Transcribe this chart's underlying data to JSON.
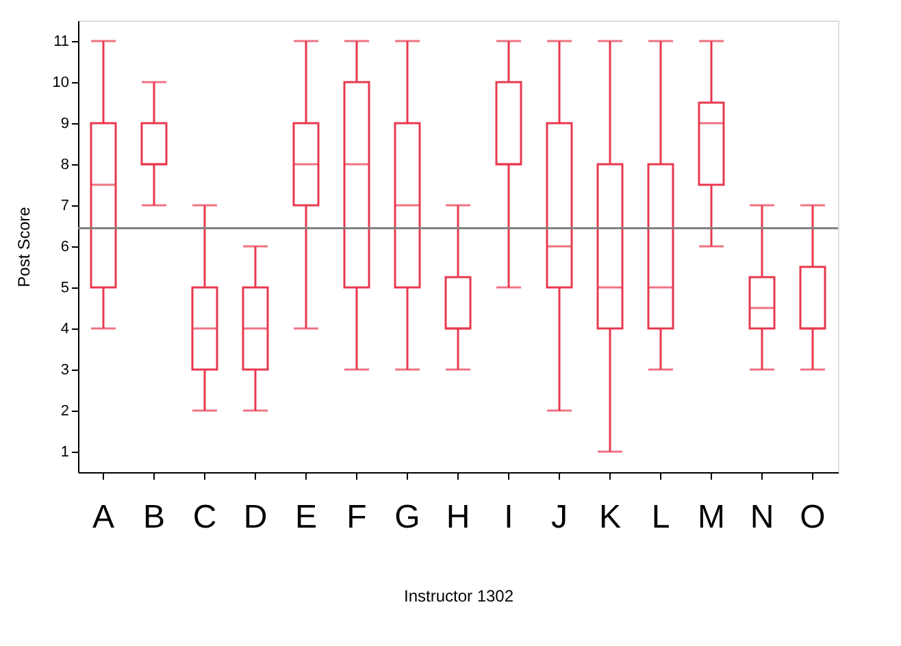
{
  "chart_data": {
    "type": "box",
    "xlabel": "Instructor 1302",
    "ylabel": "Post Score",
    "categories": [
      "A",
      "B",
      "C",
      "D",
      "E",
      "F",
      "G",
      "H",
      "I",
      "J",
      "K",
      "L",
      "M",
      "N",
      "O"
    ],
    "color": "#e8384f",
    "boxes": [
      {
        "low": 4,
        "q1": 5,
        "median": 7.5,
        "q3": 9,
        "high": 11
      },
      {
        "low": 7,
        "q1": 8,
        "median": 8,
        "q3": 9,
        "high": 10
      },
      {
        "low": 2,
        "q1": 3,
        "median": 4,
        "q3": 5,
        "high": 7
      },
      {
        "low": 2,
        "q1": 3,
        "median": 4,
        "q3": 5,
        "high": 6
      },
      {
        "low": 4,
        "q1": 7,
        "median": 8,
        "q3": 9,
        "high": 11
      },
      {
        "low": 3,
        "q1": 5,
        "median": 8,
        "q3": 10,
        "high": 11
      },
      {
        "low": 3,
        "q1": 5,
        "median": 7,
        "q3": 9,
        "high": 11
      },
      {
        "low": 3,
        "q1": 4,
        "median": 4,
        "q3": 5.25,
        "high": 7
      },
      {
        "low": 5,
        "q1": 8,
        "median": 8,
        "q3": 10,
        "high": 11
      },
      {
        "low": 2,
        "q1": 5,
        "median": 6,
        "q3": 9,
        "high": 11
      },
      {
        "low": 1,
        "q1": 4,
        "median": 5,
        "q3": 8,
        "high": 11
      },
      {
        "low": 3,
        "q1": 4,
        "median": 5,
        "q3": 8,
        "high": 11
      },
      {
        "low": 6,
        "q1": 7.5,
        "median": 9,
        "q3": 9.5,
        "high": 11
      },
      {
        "low": 3,
        "q1": 4,
        "median": 4.5,
        "q3": 5.25,
        "high": 7
      },
      {
        "low": 3,
        "q1": 4,
        "median": 4,
        "q3": 5.5,
        "high": 7
      }
    ],
    "ylim": [
      0.5,
      11.5
    ],
    "yticks": [
      1,
      2,
      3,
      4,
      5,
      6,
      7,
      8,
      9,
      10,
      11
    ],
    "ref_lines": [
      {
        "axis": "y",
        "value": 6.44,
        "color": "#808080"
      }
    ],
    "grid": false
  }
}
